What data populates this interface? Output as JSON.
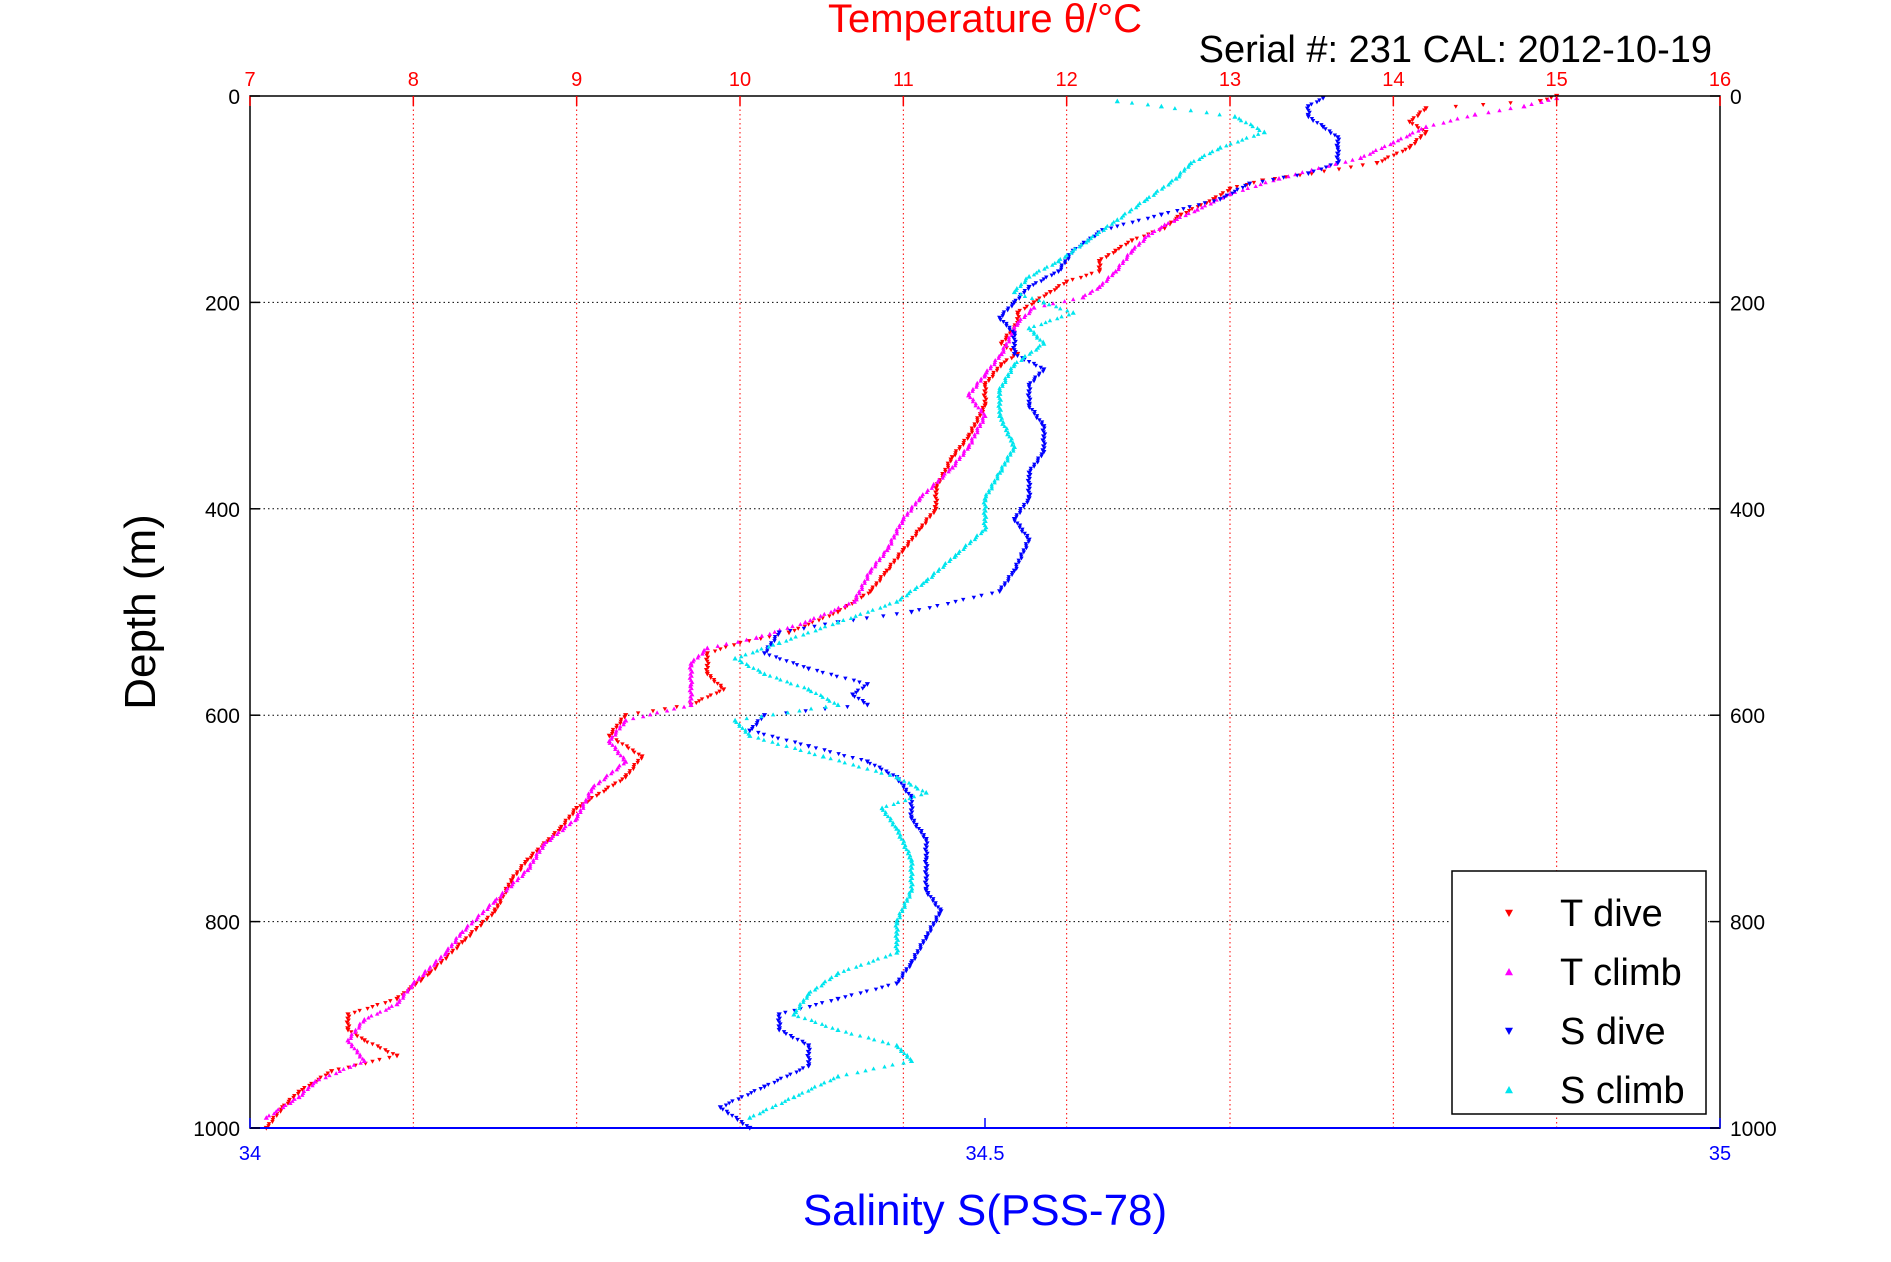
{
  "chart_data": {
    "type": "scatter",
    "title": "Temperature θ/°C",
    "subtitle": "Serial #: 231  CAL: 2012-10-19",
    "ylabel": "Depth (m)",
    "xlabel_bottom": "Salinity S(PSS-78)",
    "ylim": [
      0,
      1000
    ],
    "y_reversed": true,
    "x_top": {
      "label": "Temperature θ/°C",
      "lim": [
        7,
        16
      ],
      "ticks": [
        "7",
        "8",
        "9",
        "10",
        "11",
        "12",
        "13",
        "14",
        "15",
        "16"
      ],
      "color": "#ff0000"
    },
    "x_bottom": {
      "lim": [
        34,
        35
      ],
      "ticks": [
        "34",
        "34.5",
        "35"
      ],
      "color": "#0000ff"
    },
    "y_ticks": [
      "0",
      "200",
      "400",
      "600",
      "800",
      "1000"
    ],
    "grid": true,
    "legend_position": "bottom-right",
    "series": [
      {
        "name": "T dive",
        "axis": "temperature",
        "color": "#ff0000",
        "marker": "triangle-down",
        "points": [
          [
            15.0,
            0
          ],
          [
            14.9,
            5
          ],
          [
            14.2,
            12
          ],
          [
            14.1,
            25
          ],
          [
            14.2,
            35
          ],
          [
            14.1,
            50
          ],
          [
            13.9,
            65
          ],
          [
            13.5,
            75
          ],
          [
            13.2,
            82
          ],
          [
            13.0,
            90
          ],
          [
            12.9,
            100
          ],
          [
            12.7,
            115
          ],
          [
            12.6,
            128
          ],
          [
            12.4,
            140
          ],
          [
            12.3,
            150
          ],
          [
            12.2,
            160
          ],
          [
            12.2,
            170
          ],
          [
            12.0,
            180
          ],
          [
            11.9,
            190
          ],
          [
            11.8,
            200
          ],
          [
            11.7,
            210
          ],
          [
            11.7,
            220
          ],
          [
            11.6,
            240
          ],
          [
            11.7,
            250
          ],
          [
            11.6,
            260
          ],
          [
            11.5,
            280
          ],
          [
            11.5,
            300
          ],
          [
            11.4,
            330
          ],
          [
            11.3,
            350
          ],
          [
            11.2,
            380
          ],
          [
            11.2,
            400
          ],
          [
            11.1,
            420
          ],
          [
            11.0,
            440
          ],
          [
            10.9,
            460
          ],
          [
            10.8,
            480
          ],
          [
            10.6,
            500
          ],
          [
            10.3,
            520
          ],
          [
            10.0,
            530
          ],
          [
            9.8,
            540
          ],
          [
            9.8,
            560
          ],
          [
            9.9,
            575
          ],
          [
            9.7,
            590
          ],
          [
            9.3,
            600
          ],
          [
            9.2,
            620
          ],
          [
            9.4,
            640
          ],
          [
            9.3,
            660
          ],
          [
            9.0,
            690
          ],
          [
            8.9,
            710
          ],
          [
            8.7,
            740
          ],
          [
            8.6,
            760
          ],
          [
            8.5,
            790
          ],
          [
            8.3,
            820
          ],
          [
            8.1,
            850
          ],
          [
            7.9,
            875
          ],
          [
            7.6,
            890
          ],
          [
            7.6,
            905
          ],
          [
            7.7,
            915
          ],
          [
            7.9,
            930
          ],
          [
            7.5,
            945
          ],
          [
            7.3,
            965
          ],
          [
            7.2,
            980
          ],
          [
            7.1,
            1000
          ]
        ]
      },
      {
        "name": "T climb",
        "axis": "temperature",
        "color": "#ff00ff",
        "marker": "triangle-up",
        "points": [
          [
            15.0,
            2
          ],
          [
            14.8,
            10
          ],
          [
            14.5,
            18
          ],
          [
            14.2,
            30
          ],
          [
            14.0,
            45
          ],
          [
            13.8,
            60
          ],
          [
            13.5,
            72
          ],
          [
            13.3,
            80
          ],
          [
            13.0,
            95
          ],
          [
            12.8,
            110
          ],
          [
            12.6,
            125
          ],
          [
            12.5,
            135
          ],
          [
            12.4,
            150
          ],
          [
            12.3,
            170
          ],
          [
            12.2,
            185
          ],
          [
            12.1,
            195
          ],
          [
            11.8,
            205
          ],
          [
            11.7,
            220
          ],
          [
            11.6,
            250
          ],
          [
            11.5,
            270
          ],
          [
            11.4,
            290
          ],
          [
            11.5,
            310
          ],
          [
            11.4,
            340
          ],
          [
            11.3,
            360
          ],
          [
            11.1,
            390
          ],
          [
            11.0,
            410
          ],
          [
            10.9,
            440
          ],
          [
            10.8,
            460
          ],
          [
            10.7,
            490
          ],
          [
            10.4,
            510
          ],
          [
            10.1,
            525
          ],
          [
            9.8,
            535
          ],
          [
            9.7,
            550
          ],
          [
            9.7,
            570
          ],
          [
            9.7,
            590
          ],
          [
            9.3,
            605
          ],
          [
            9.2,
            625
          ],
          [
            9.3,
            645
          ],
          [
            9.1,
            670
          ],
          [
            9.0,
            700
          ],
          [
            8.8,
            725
          ],
          [
            8.7,
            750
          ],
          [
            8.5,
            780
          ],
          [
            8.3,
            810
          ],
          [
            8.2,
            830
          ],
          [
            8.0,
            860
          ],
          [
            7.9,
            880
          ],
          [
            7.7,
            895
          ],
          [
            7.6,
            915
          ],
          [
            7.7,
            935
          ],
          [
            7.4,
            955
          ],
          [
            7.3,
            970
          ],
          [
            7.1,
            990
          ]
        ]
      },
      {
        "name": "S dive",
        "axis": "salinity",
        "color": "#0000ff",
        "marker": "triangle-down",
        "points": [
          [
            34.73,
            2
          ],
          [
            34.72,
            10
          ],
          [
            34.72,
            20
          ],
          [
            34.73,
            30
          ],
          [
            34.74,
            40
          ],
          [
            34.74,
            50
          ],
          [
            34.74,
            65
          ],
          [
            34.72,
            75
          ],
          [
            34.68,
            85
          ],
          [
            34.66,
            100
          ],
          [
            34.62,
            115
          ],
          [
            34.58,
            130
          ],
          [
            34.56,
            150
          ],
          [
            34.55,
            170
          ],
          [
            34.53,
            185
          ],
          [
            34.52,
            200
          ],
          [
            34.51,
            215
          ],
          [
            34.52,
            230
          ],
          [
            34.52,
            250
          ],
          [
            34.54,
            265
          ],
          [
            34.53,
            280
          ],
          [
            34.53,
            300
          ],
          [
            34.54,
            320
          ],
          [
            34.54,
            345
          ],
          [
            34.53,
            365
          ],
          [
            34.53,
            390
          ],
          [
            34.52,
            410
          ],
          [
            34.53,
            430
          ],
          [
            34.52,
            460
          ],
          [
            34.51,
            480
          ],
          [
            34.45,
            500
          ],
          [
            34.4,
            510
          ],
          [
            34.36,
            520
          ],
          [
            34.35,
            540
          ],
          [
            34.38,
            555
          ],
          [
            34.42,
            570
          ],
          [
            34.41,
            580
          ],
          [
            34.42,
            590
          ],
          [
            34.35,
            600
          ],
          [
            34.34,
            615
          ],
          [
            34.38,
            630
          ],
          [
            34.42,
            645
          ],
          [
            34.44,
            660
          ],
          [
            34.45,
            680
          ],
          [
            34.45,
            700
          ],
          [
            34.46,
            720
          ],
          [
            34.46,
            740
          ],
          [
            34.46,
            770
          ],
          [
            34.47,
            790
          ],
          [
            34.46,
            815
          ],
          [
            34.45,
            840
          ],
          [
            34.44,
            860
          ],
          [
            34.4,
            875
          ],
          [
            34.36,
            890
          ],
          [
            34.36,
            905
          ],
          [
            34.38,
            920
          ],
          [
            34.38,
            940
          ],
          [
            34.35,
            960
          ],
          [
            34.32,
            980
          ],
          [
            34.34,
            1000
          ]
        ]
      },
      {
        "name": "S climb",
        "axis": "salinity",
        "color": "#00e5ee",
        "marker": "triangle-up",
        "points": [
          [
            34.59,
            5
          ],
          [
            34.62,
            10
          ],
          [
            34.67,
            20
          ],
          [
            34.69,
            35
          ],
          [
            34.66,
            50
          ],
          [
            34.64,
            65
          ],
          [
            34.63,
            80
          ],
          [
            34.61,
            100
          ],
          [
            34.59,
            120
          ],
          [
            34.57,
            140
          ],
          [
            34.55,
            160
          ],
          [
            34.53,
            175
          ],
          [
            34.52,
            190
          ],
          [
            34.54,
            200
          ],
          [
            34.56,
            210
          ],
          [
            34.53,
            225
          ],
          [
            34.54,
            240
          ],
          [
            34.52,
            260
          ],
          [
            34.51,
            285
          ],
          [
            34.51,
            310
          ],
          [
            34.52,
            340
          ],
          [
            34.51,
            365
          ],
          [
            34.5,
            390
          ],
          [
            34.5,
            420
          ],
          [
            34.48,
            445
          ],
          [
            34.46,
            470
          ],
          [
            34.44,
            490
          ],
          [
            34.4,
            510
          ],
          [
            34.36,
            530
          ],
          [
            34.33,
            545
          ],
          [
            34.35,
            560
          ],
          [
            34.38,
            575
          ],
          [
            34.4,
            590
          ],
          [
            34.33,
            605
          ],
          [
            34.34,
            620
          ],
          [
            34.39,
            640
          ],
          [
            34.44,
            660
          ],
          [
            34.46,
            675
          ],
          [
            34.43,
            690
          ],
          [
            34.44,
            710
          ],
          [
            34.45,
            740
          ],
          [
            34.45,
            770
          ],
          [
            34.44,
            800
          ],
          [
            34.44,
            830
          ],
          [
            34.4,
            850
          ],
          [
            34.38,
            870
          ],
          [
            34.37,
            890
          ],
          [
            34.4,
            905
          ],
          [
            34.44,
            920
          ],
          [
            34.45,
            935
          ],
          [
            34.4,
            950
          ],
          [
            34.37,
            970
          ],
          [
            34.34,
            990
          ]
        ]
      }
    ]
  }
}
